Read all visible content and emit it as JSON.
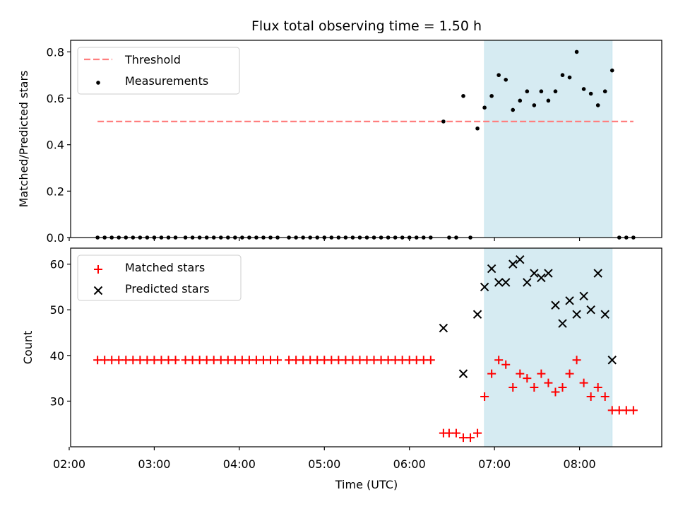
{
  "chart_data": {
    "title": "Flux total observing time = 1.50 h",
    "xlabel": "Time (UTC)",
    "x_ticks": [
      "02:00",
      "03:00",
      "04:00",
      "05:00",
      "06:00",
      "07:00",
      "08:00"
    ],
    "shaded_span": {
      "start": "06:53",
      "end": "08:23",
      "color": "#add8e6"
    },
    "panels": [
      {
        "type": "scatter",
        "ylabel": "Matched/Predicted stars",
        "ylim": [
          0,
          0.85
        ],
        "yticks": [
          0.0,
          0.2,
          0.4,
          0.6,
          0.8
        ],
        "y_tick_labels": [
          "0.0",
          "0.2",
          "0.4",
          "0.6",
          "0.8"
        ],
        "legend_position": "upper left",
        "threshold": {
          "name": "Threshold",
          "y": 0.5,
          "x_start": "02:20",
          "x_end": "08:38",
          "color": "#ff7f7f",
          "style": "dashed"
        },
        "series": [
          {
            "name": "Measurements",
            "marker": "dot",
            "color": "#000000",
            "points": [
              [
                "02:20",
                0
              ],
              [
                "02:25",
                0
              ],
              [
                "02:30",
                0
              ],
              [
                "02:35",
                0
              ],
              [
                "02:40",
                0
              ],
              [
                "02:45",
                0
              ],
              [
                "02:50",
                0
              ],
              [
                "02:55",
                0
              ],
              [
                "03:00",
                0
              ],
              [
                "03:05",
                0
              ],
              [
                "03:10",
                0
              ],
              [
                "03:15",
                0
              ],
              [
                "03:22",
                0
              ],
              [
                "03:27",
                0
              ],
              [
                "03:32",
                0
              ],
              [
                "03:37",
                0
              ],
              [
                "03:42",
                0
              ],
              [
                "03:47",
                0
              ],
              [
                "03:52",
                0
              ],
              [
                "03:57",
                0
              ],
              [
                "04:02",
                0
              ],
              [
                "04:07",
                0
              ],
              [
                "04:12",
                0
              ],
              [
                "04:17",
                0
              ],
              [
                "04:22",
                0
              ],
              [
                "04:27",
                0
              ],
              [
                "04:35",
                0
              ],
              [
                "04:40",
                0
              ],
              [
                "04:45",
                0
              ],
              [
                "04:50",
                0
              ],
              [
                "04:55",
                0
              ],
              [
                "05:00",
                0
              ],
              [
                "05:05",
                0
              ],
              [
                "05:10",
                0
              ],
              [
                "05:15",
                0
              ],
              [
                "05:20",
                0
              ],
              [
                "05:25",
                0
              ],
              [
                "05:30",
                0
              ],
              [
                "05:35",
                0
              ],
              [
                "05:40",
                0
              ],
              [
                "05:45",
                0
              ],
              [
                "05:50",
                0
              ],
              [
                "05:55",
                0
              ],
              [
                "06:00",
                0
              ],
              [
                "06:05",
                0
              ],
              [
                "06:10",
                0
              ],
              [
                "06:15",
                0
              ],
              [
                "06:24",
                0.5
              ],
              [
                "06:28",
                0
              ],
              [
                "06:33",
                0
              ],
              [
                "06:38",
                0.61
              ],
              [
                "06:43",
                0
              ],
              [
                "06:48",
                0.47
              ],
              [
                "06:53",
                0.56
              ],
              [
                "06:58",
                0.61
              ],
              [
                "07:03",
                0.7
              ],
              [
                "07:08",
                0.68
              ],
              [
                "07:13",
                0.55
              ],
              [
                "07:18",
                0.59
              ],
              [
                "07:23",
                0.63
              ],
              [
                "07:28",
                0.57
              ],
              [
                "07:33",
                0.63
              ],
              [
                "07:38",
                0.59
              ],
              [
                "07:43",
                0.63
              ],
              [
                "07:48",
                0.7
              ],
              [
                "07:53",
                0.69
              ],
              [
                "07:58",
                0.8
              ],
              [
                "08:03",
                0.64
              ],
              [
                "08:08",
                0.62
              ],
              [
                "08:13",
                0.57
              ],
              [
                "08:18",
                0.63
              ],
              [
                "08:23",
                0.72
              ],
              [
                "08:28",
                0
              ],
              [
                "08:33",
                0
              ],
              [
                "08:38",
                0
              ]
            ]
          }
        ]
      },
      {
        "type": "scatter",
        "ylabel": "Count",
        "ylim": [
          20,
          63.5
        ],
        "yticks": [
          30,
          40,
          50,
          60
        ],
        "y_tick_labels": [
          "30",
          "40",
          "50",
          "60"
        ],
        "legend_position": "upper left",
        "series": [
          {
            "name": "Matched stars",
            "marker": "plus",
            "color": "#ff0000",
            "points": [
              [
                "02:20",
                39
              ],
              [
                "02:25",
                39
              ],
              [
                "02:30",
                39
              ],
              [
                "02:35",
                39
              ],
              [
                "02:40",
                39
              ],
              [
                "02:45",
                39
              ],
              [
                "02:50",
                39
              ],
              [
                "02:55",
                39
              ],
              [
                "03:00",
                39
              ],
              [
                "03:05",
                39
              ],
              [
                "03:10",
                39
              ],
              [
                "03:15",
                39
              ],
              [
                "03:22",
                39
              ],
              [
                "03:27",
                39
              ],
              [
                "03:32",
                39
              ],
              [
                "03:37",
                39
              ],
              [
                "03:42",
                39
              ],
              [
                "03:47",
                39
              ],
              [
                "03:52",
                39
              ],
              [
                "03:57",
                39
              ],
              [
                "04:02",
                39
              ],
              [
                "04:07",
                39
              ],
              [
                "04:12",
                39
              ],
              [
                "04:17",
                39
              ],
              [
                "04:22",
                39
              ],
              [
                "04:27",
                39
              ],
              [
                "04:35",
                39
              ],
              [
                "04:40",
                39
              ],
              [
                "04:45",
                39
              ],
              [
                "04:50",
                39
              ],
              [
                "04:55",
                39
              ],
              [
                "05:00",
                39
              ],
              [
                "05:05",
                39
              ],
              [
                "05:10",
                39
              ],
              [
                "05:15",
                39
              ],
              [
                "05:20",
                39
              ],
              [
                "05:25",
                39
              ],
              [
                "05:30",
                39
              ],
              [
                "05:35",
                39
              ],
              [
                "05:40",
                39
              ],
              [
                "05:45",
                39
              ],
              [
                "05:50",
                39
              ],
              [
                "05:55",
                39
              ],
              [
                "06:00",
                39
              ],
              [
                "06:05",
                39
              ],
              [
                "06:10",
                39
              ],
              [
                "06:15",
                39
              ],
              [
                "06:24",
                23
              ],
              [
                "06:28",
                23
              ],
              [
                "06:33",
                23
              ],
              [
                "06:38",
                22
              ],
              [
                "06:43",
                22
              ],
              [
                "06:48",
                23
              ],
              [
                "06:53",
                31
              ],
              [
                "06:58",
                36
              ],
              [
                "07:03",
                39
              ],
              [
                "07:08",
                38
              ],
              [
                "07:13",
                33
              ],
              [
                "07:18",
                36
              ],
              [
                "07:23",
                35
              ],
              [
                "07:28",
                33
              ],
              [
                "07:33",
                36
              ],
              [
                "07:38",
                34
              ],
              [
                "07:43",
                32
              ],
              [
                "07:48",
                33
              ],
              [
                "07:53",
                36
              ],
              [
                "07:58",
                39
              ],
              [
                "08:03",
                34
              ],
              [
                "08:08",
                31
              ],
              [
                "08:13",
                33
              ],
              [
                "08:18",
                31
              ],
              [
                "08:23",
                28
              ],
              [
                "08:28",
                28
              ],
              [
                "08:33",
                28
              ],
              [
                "08:38",
                28
              ]
            ]
          },
          {
            "name": "Predicted stars",
            "marker": "x",
            "color": "#000000",
            "points": [
              [
                "06:24",
                46
              ],
              [
                "06:38",
                36
              ],
              [
                "06:48",
                49
              ],
              [
                "06:53",
                55
              ],
              [
                "06:58",
                59
              ],
              [
                "07:03",
                56
              ],
              [
                "07:08",
                56
              ],
              [
                "07:13",
                60
              ],
              [
                "07:18",
                61
              ],
              [
                "07:23",
                56
              ],
              [
                "07:28",
                58
              ],
              [
                "07:33",
                57
              ],
              [
                "07:38",
                58
              ],
              [
                "07:43",
                51
              ],
              [
                "07:48",
                47
              ],
              [
                "07:53",
                52
              ],
              [
                "07:58",
                49
              ],
              [
                "08:03",
                53
              ],
              [
                "08:08",
                50
              ],
              [
                "08:13",
                58
              ],
              [
                "08:18",
                49
              ],
              [
                "08:23",
                39
              ]
            ]
          }
        ]
      }
    ]
  }
}
